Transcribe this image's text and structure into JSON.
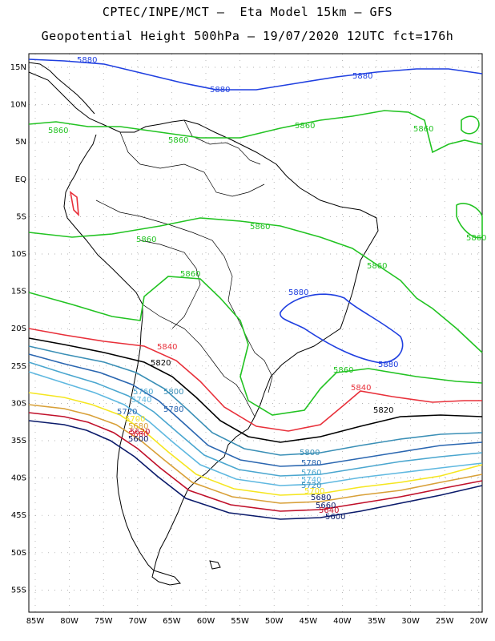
{
  "header": {
    "line1": "CPTEC/INPE/MCT –  Eta Model 15km – GFS",
    "line2": "Geopotential Height 500hPa – 19/07/2020 12UTC fct=176h"
  },
  "axes": {
    "lat_labels": [
      "15N",
      "10N",
      "5N",
      "EQ",
      "5S",
      "10S",
      "15S",
      "20S",
      "25S",
      "30S",
      "35S",
      "40S",
      "45S",
      "50S",
      "55S"
    ],
    "lon_labels": [
      "85W",
      "80W",
      "75W",
      "70W",
      "65W",
      "60W",
      "55W",
      "50W",
      "45W",
      "40W",
      "35W",
      "30W",
      "25W",
      "20W"
    ]
  },
  "colors": {
    "c5880": "#1f3fe0",
    "c5860": "#22c322",
    "c5840": "#e8303a",
    "c5820": "#000000",
    "c5800": "#3a8fb6",
    "c5780": "#2a66b0",
    "c5760": "#4aa6cf",
    "c5740": "#5fb8e0",
    "c5720": "#f5e620",
    "c5700": "#d8a038",
    "c5680": "#c0102a",
    "c5660": "#0a1a6a"
  },
  "contour_labels": {
    "c5880": [
      "5880",
      "5880",
      "5880",
      "5880",
      "5880"
    ],
    "c5860": [
      "5860",
      "5860",
      "5860",
      "5860",
      "5860",
      "5860",
      "5860",
      "5860",
      "5860",
      "5860"
    ],
    "c5840": [
      "5840",
      "5840"
    ],
    "c5820": [
      "5820",
      "5820"
    ],
    "c5800": [
      "5800",
      "5800"
    ],
    "c5780": [
      "5780",
      "5780"
    ],
    "c5760": [
      "5760",
      "5760"
    ],
    "c5740": [
      "5740",
      "5740"
    ],
    "c5720": [
      "5720",
      "5720"
    ],
    "c5700": [
      "5700",
      "5700"
    ],
    "c5680": [
      "5680",
      "5680"
    ],
    "c5660": [
      "5660",
      "5660"
    ],
    "c5640": [
      "5640"
    ],
    "c5620": [
      "5620"
    ],
    "c5600": [
      "5600",
      "5600"
    ]
  }
}
